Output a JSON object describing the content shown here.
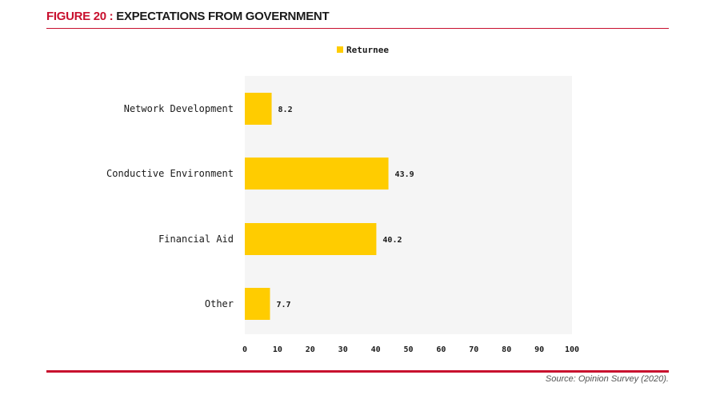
{
  "figure": {
    "number_label": "FIGURE 20 : ",
    "title": "EXPECTATIONS FROM GOVERNMENT",
    "source": "Source: Opinion Survey (2020)."
  },
  "colors": {
    "bar": "#ffcc00",
    "accent": "#c8102e",
    "plot_bg": "#f5f5f5"
  },
  "chart_data": {
    "type": "bar",
    "orientation": "horizontal",
    "categories": [
      "Network Development",
      "Conductive Environment",
      "Financial Aid",
      "Other"
    ],
    "series": [
      {
        "name": "Returnee",
        "values": [
          8.2,
          43.9,
          40.2,
          7.7
        ]
      }
    ],
    "data_labels": [
      "8.2",
      "43.9",
      "40.2",
      "7.7"
    ],
    "xlim": [
      0,
      100
    ],
    "xticks": [
      0,
      10,
      20,
      30,
      40,
      50,
      60,
      70,
      80,
      90,
      100
    ],
    "legend_position": "top-center",
    "grid": false
  }
}
